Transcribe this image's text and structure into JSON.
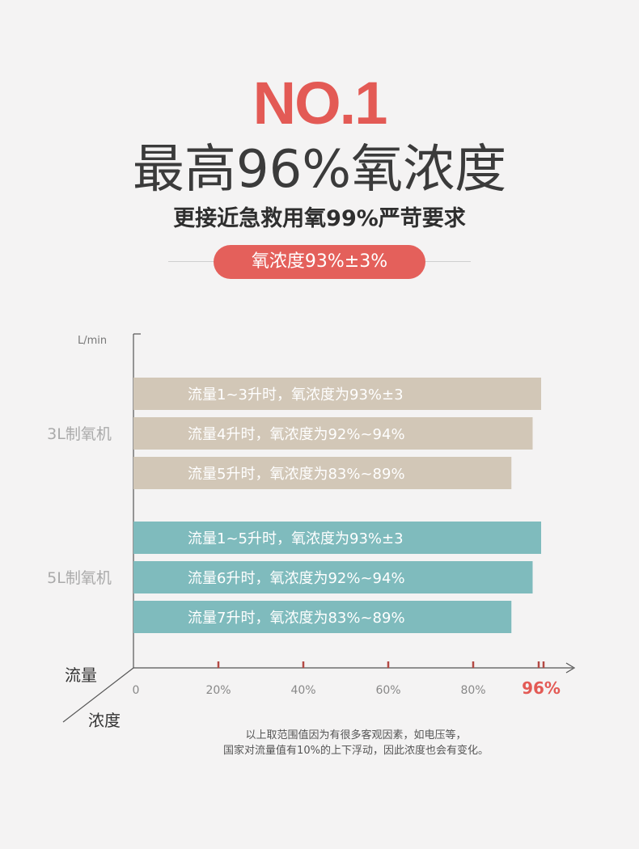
{
  "header": {
    "rank": "NO.1",
    "title": "最高96%氧浓度",
    "subtitle": "更接近急救用氧99%严苛要求",
    "pill": "氧浓度93%±3%"
  },
  "colors": {
    "accent": "#e35a55",
    "pill_bg": "#e4605b",
    "group1_bar": "#d2c7b7",
    "group2_bar": "#7fbbbd",
    "axis": "#555555",
    "tick_mark": "#b44a45"
  },
  "chart_data": {
    "type": "bar",
    "orientation": "horizontal",
    "unit_label": "L/min",
    "xlim": [
      0,
      100
    ],
    "x_ticks": [
      "0",
      "20%",
      "40%",
      "60%",
      "80%"
    ],
    "x_highlight": "96%",
    "axis_label_flow": "流量",
    "axis_label_concentration": "浓度",
    "groups": [
      {
        "name": "3L制氧机",
        "bars": [
          {
            "label": "流量1~3升时，氧浓度为93%±3",
            "value": 96
          },
          {
            "label": "流量4升时，氧浓度为92%~94%",
            "value": 94
          },
          {
            "label": "流量5升时，氧浓度为83%~89%",
            "value": 89
          }
        ]
      },
      {
        "name": "5L制氧机",
        "bars": [
          {
            "label": "流量1~5升时，氧浓度为93%±3",
            "value": 96
          },
          {
            "label": "流量6升时，氧浓度为92%~94%",
            "value": 94
          },
          {
            "label": "流量7升时，氧浓度为83%~89%",
            "value": 89
          }
        ]
      }
    ]
  },
  "footnote": {
    "line1": "以上取范围值因为有很多客观因素，如电压等，",
    "line2": "国家对流量值有10%的上下浮动，因此浓度也会有变化。"
  }
}
